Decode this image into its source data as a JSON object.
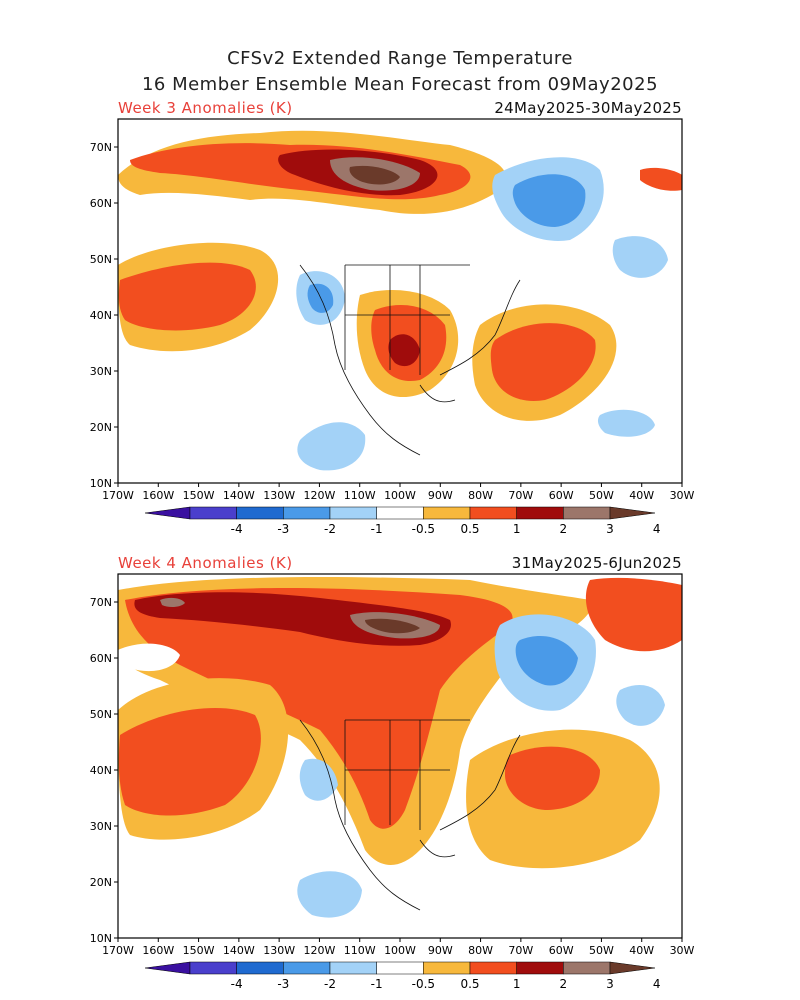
{
  "header": {
    "title_line1": "CFSv2 Extended Range Temperature",
    "title_line2": "16 Member Ensemble Mean Forecast from 09May2025"
  },
  "panels": [
    {
      "label": "Week 3 Anomalies (K)",
      "dates": "24May2025-30May2025"
    },
    {
      "label": "Week 4 Anomalies (K)",
      "dates": "31May2025-6Jun2025"
    }
  ],
  "axes": {
    "lon_labels": [
      "170W",
      "160W",
      "150W",
      "140W",
      "130W",
      "120W",
      "110W",
      "100W",
      "90W",
      "80W",
      "70W",
      "60W",
      "50W",
      "40W",
      "30W"
    ],
    "lat_labels": [
      "70N",
      "60N",
      "50N",
      "40N",
      "30N",
      "20N",
      "10N"
    ]
  },
  "colorbar": {
    "labels": [
      "-4",
      "-3",
      "-2",
      "-1",
      "-0.5",
      "0.5",
      "1",
      "2",
      "3",
      "4"
    ],
    "colors": [
      "#3a10a0",
      "#4a3fcc",
      "#1f6ad0",
      "#4a9ae8",
      "#a3d2f7",
      "#ffffff",
      "#f7b83c",
      "#f24e1f",
      "#a00c0c",
      "#9c766a",
      "#6a3a2a"
    ]
  }
}
